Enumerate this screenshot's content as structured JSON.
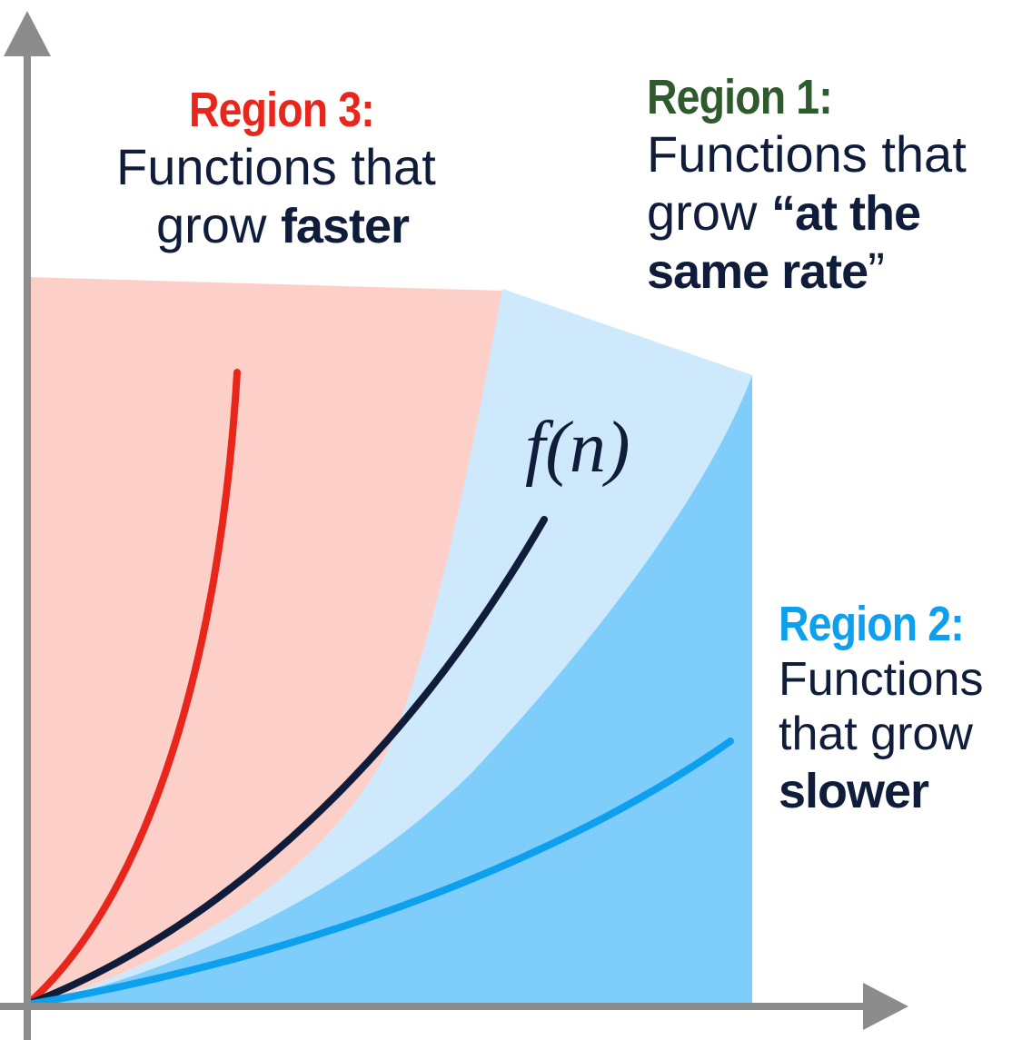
{
  "regions": {
    "region3": {
      "title": "Region 3:",
      "line1": "Functions that",
      "line2_prefix": "grow",
      "line2_bold": "faster",
      "color": "#e8261b"
    },
    "region1": {
      "title": "Region 1:",
      "line1": "Functions that",
      "line2_prefix": "grow",
      "line2_bold": "“at the",
      "line3_bold": "same rate",
      "line3_suffix": "”",
      "color": "#2e5a2e"
    },
    "region2": {
      "title": "Region 2:",
      "line1": "Functions",
      "line2": "that grow",
      "line3_bold": "slower",
      "color": "#0da0ee"
    }
  },
  "function_label": "f(n)",
  "colors": {
    "axis": "#8c8c8c",
    "region3_fill": "#fcd0c9",
    "region1_fill": "#cde9fb",
    "region2_fill": "#7ecdfb",
    "fast_curve": "#e8261b",
    "f_curve": "#0f1d3a",
    "slow_curve": "#0da0ee",
    "text_dark": "#0f1d3a"
  }
}
